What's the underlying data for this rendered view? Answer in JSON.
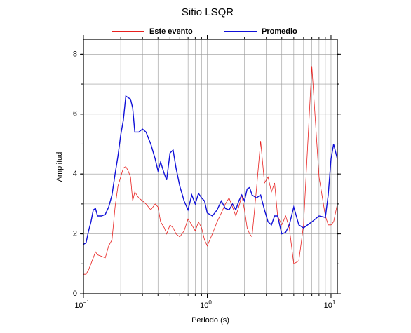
{
  "chart_data": {
    "type": "line",
    "title": "Sitio LSQR",
    "xlabel": "Periodo (s)",
    "ylabel": "Amplitud",
    "xscale": "log",
    "xlim": [
      0.1,
      11.25
    ],
    "ylim": [
      0,
      8.5
    ],
    "xticks": [
      {
        "value": 0.1,
        "label": "10",
        "exponent": "−1"
      },
      {
        "value": 1,
        "label": "10",
        "exponent": "0"
      },
      {
        "value": 10,
        "label": "10",
        "exponent": "1"
      }
    ],
    "xgrid": [
      0.2,
      0.3,
      0.4,
      0.5,
      0.6,
      0.7,
      0.8,
      0.9,
      1,
      2,
      3,
      4,
      5,
      6,
      7,
      8,
      9,
      10
    ],
    "yticks": [
      0,
      2,
      4,
      6,
      8
    ],
    "ygrid": [
      1,
      2,
      3,
      4,
      5,
      6,
      7,
      8
    ],
    "legend": "top",
    "x": [
      0.1,
      0.105,
      0.11,
      0.115,
      0.12,
      0.125,
      0.13,
      0.14,
      0.15,
      0.16,
      0.17,
      0.18,
      0.19,
      0.2,
      0.21,
      0.22,
      0.23,
      0.24,
      0.25,
      0.26,
      0.28,
      0.3,
      0.32,
      0.35,
      0.38,
      0.4,
      0.42,
      0.45,
      0.47,
      0.5,
      0.53,
      0.56,
      0.6,
      0.65,
      0.7,
      0.75,
      0.8,
      0.85,
      0.9,
      0.95,
      1.0,
      1.1,
      1.2,
      1.3,
      1.4,
      1.5,
      1.6,
      1.7,
      1.8,
      1.9,
      2.0,
      2.1,
      2.2,
      2.3,
      2.5,
      2.7,
      2.9,
      3.1,
      3.3,
      3.5,
      3.7,
      4.0,
      4.3,
      4.6,
      5.0,
      5.5,
      6.0,
      7.0,
      8.0,
      9.0,
      9.5,
      10.0,
      10.5,
      11.25
    ],
    "series": [
      {
        "name": "Este evento",
        "color": "#e8201e",
        "width": 0.8,
        "values": [
          0.65,
          0.65,
          0.8,
          1.0,
          1.2,
          1.4,
          1.3,
          1.25,
          1.2,
          1.6,
          1.8,
          2.9,
          3.6,
          3.9,
          4.2,
          4.25,
          4.1,
          3.9,
          3.1,
          3.4,
          3.2,
          3.1,
          3.0,
          2.8,
          3.0,
          2.9,
          2.4,
          2.2,
          2.0,
          2.3,
          2.2,
          2.0,
          1.9,
          2.1,
          2.5,
          2.3,
          2.1,
          2.4,
          2.2,
          1.8,
          1.6,
          2.0,
          2.4,
          2.7,
          3.0,
          3.2,
          2.9,
          2.6,
          2.9,
          3.3,
          2.8,
          2.2,
          2.0,
          1.9,
          3.5,
          5.1,
          3.7,
          3.9,
          3.4,
          3.7,
          2.6,
          2.3,
          2.6,
          2.2,
          1.0,
          1.1,
          2.3,
          7.6,
          3.9,
          2.6,
          2.3,
          2.3,
          2.4,
          3.0
        ]
      },
      {
        "name": "Promedio",
        "color": "#1010d8",
        "width": 1.4,
        "values": [
          1.65,
          1.7,
          2.1,
          2.4,
          2.8,
          2.85,
          2.6,
          2.6,
          2.65,
          2.9,
          3.3,
          4.0,
          4.6,
          5.3,
          5.8,
          6.6,
          6.55,
          6.5,
          6.2,
          5.4,
          5.4,
          5.5,
          5.4,
          5.0,
          4.5,
          4.1,
          4.4,
          4.0,
          3.8,
          4.7,
          4.8,
          4.2,
          3.6,
          3.1,
          2.8,
          3.3,
          3.0,
          3.35,
          3.2,
          3.1,
          2.7,
          2.6,
          2.8,
          3.1,
          2.85,
          2.8,
          3.0,
          2.8,
          3.1,
          3.3,
          3.1,
          3.5,
          3.55,
          3.3,
          3.2,
          3.3,
          2.8,
          2.4,
          2.3,
          2.6,
          2.6,
          2.0,
          2.05,
          2.3,
          2.9,
          2.3,
          2.2,
          2.4,
          2.6,
          2.55,
          3.3,
          4.5,
          5.0,
          4.5
        ]
      }
    ]
  }
}
